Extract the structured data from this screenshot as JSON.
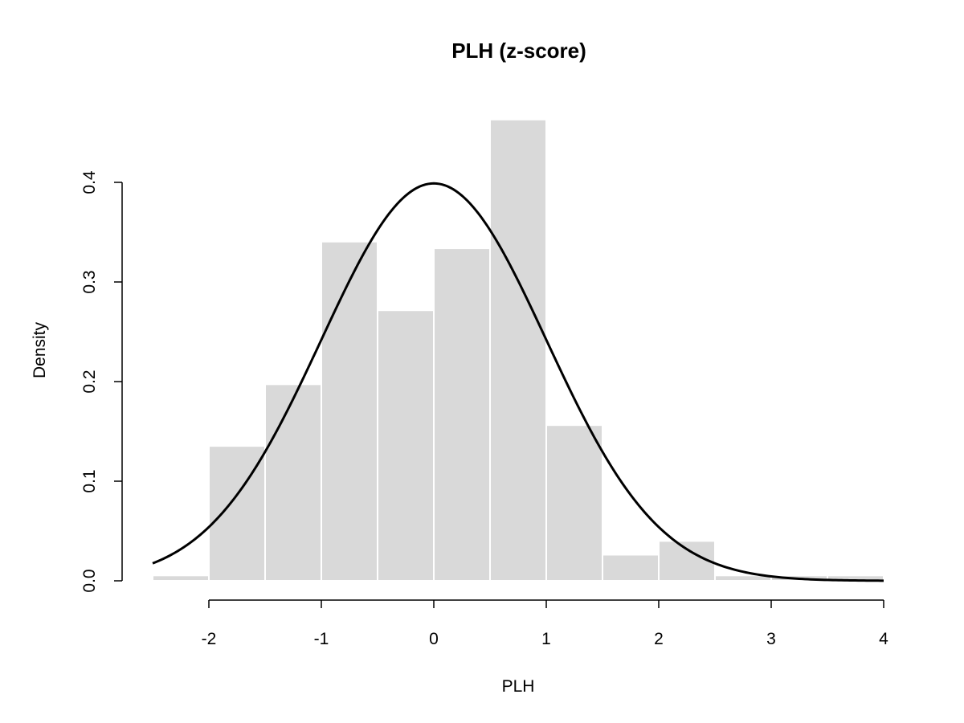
{
  "chart_data": {
    "type": "bar",
    "title": "PLH (z-score)",
    "xlabel": "PLH",
    "ylabel": "Density",
    "xlim": [
      -2.5,
      4
    ],
    "ylim": [
      0,
      0.4
    ],
    "x_ticks": [
      -2,
      -1,
      0,
      1,
      2,
      3,
      4
    ],
    "x_tick_labels": [
      "-2",
      "-1",
      "0",
      "1",
      "2",
      "3",
      "4"
    ],
    "y_ticks": [
      0,
      0.1,
      0.2,
      0.3,
      0.4
    ],
    "y_tick_labels": [
      "0.0",
      "0.1",
      "0.2",
      "0.3",
      "0.4"
    ],
    "grid": false,
    "bins": [
      {
        "x0": -2.5,
        "x1": -2.0,
        "density": 0.0054
      },
      {
        "x0": -2.0,
        "x1": -1.5,
        "density": 0.1354
      },
      {
        "x0": -1.5,
        "x1": -1.0,
        "density": 0.1973
      },
      {
        "x0": -1.0,
        "x1": -0.5,
        "density": 0.3405
      },
      {
        "x0": -0.5,
        "x1": 0.0,
        "density": 0.2716
      },
      {
        "x0": 0.0,
        "x1": 0.5,
        "density": 0.3338
      },
      {
        "x0": 0.5,
        "x1": 1.0,
        "density": 0.4631
      },
      {
        "x0": 1.0,
        "x1": 1.5,
        "density": 0.1563
      },
      {
        "x0": 1.5,
        "x1": 2.0,
        "density": 0.0262
      },
      {
        "x0": 2.0,
        "x1": 2.5,
        "density": 0.04
      },
      {
        "x0": 2.5,
        "x1": 3.0,
        "density": 0.0054
      },
      {
        "x0": 3.0,
        "x1": 3.5,
        "density": 0.0054
      },
      {
        "x0": 3.5,
        "x1": 4.0,
        "density": 0.0054
      }
    ],
    "curve": {
      "type": "normal-density",
      "mean": 0,
      "sd": 1,
      "from": -2.5,
      "to": 4
    },
    "colors": {
      "bar_fill": "#d9d9d9",
      "bar_border": "#ffffff",
      "curve": "#000000",
      "axis": "#000000"
    }
  }
}
